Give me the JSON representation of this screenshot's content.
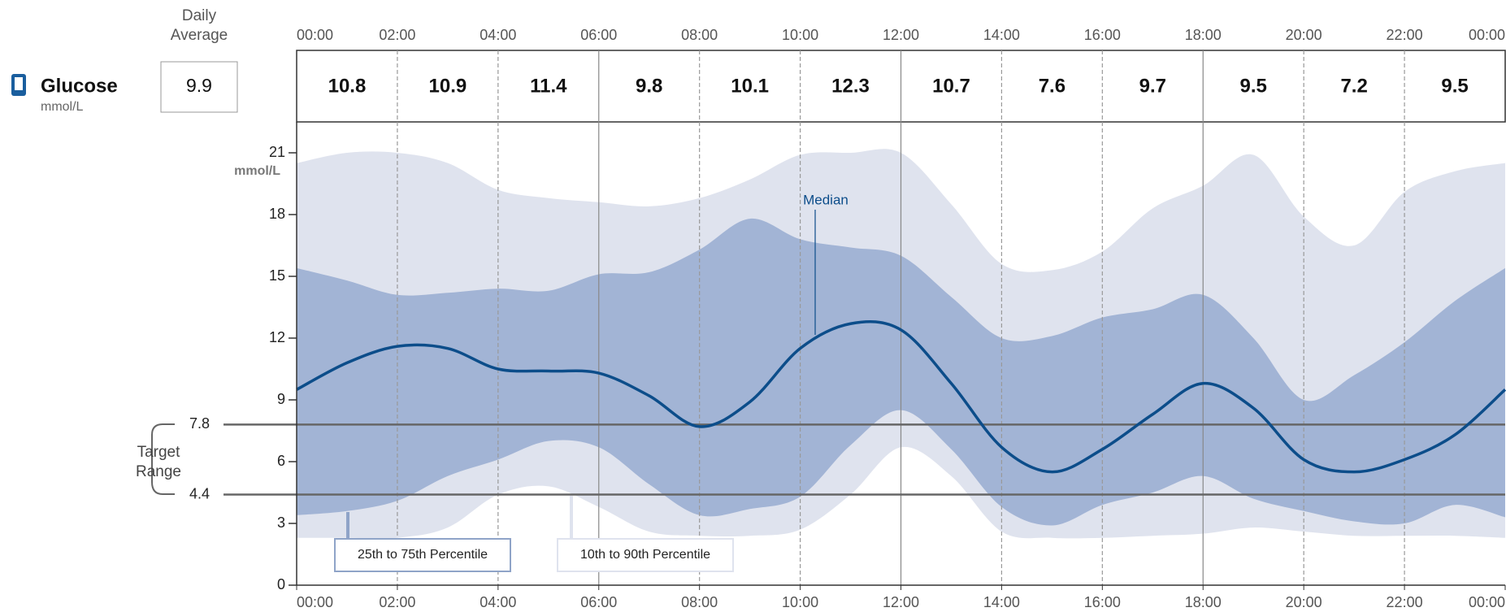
{
  "header": {
    "label": "Glucose",
    "unit": "mmol/L",
    "daily_average_label": "Daily Average",
    "daily_average": 9.9
  },
  "chart_data": {
    "type": "percentile-area",
    "x": [
      0,
      1,
      2,
      3,
      4,
      5,
      6,
      7,
      8,
      9,
      10,
      11,
      12,
      13,
      14,
      15,
      16,
      17,
      18,
      19,
      20,
      21,
      22,
      23,
      24
    ],
    "xlim": [
      0,
      24
    ],
    "xticks": [
      {
        "value": 0,
        "label": "00:00"
      },
      {
        "value": 2,
        "label": "02:00"
      },
      {
        "value": 4,
        "label": "04:00"
      },
      {
        "value": 6,
        "label": "06:00"
      },
      {
        "value": 8,
        "label": "08:00"
      },
      {
        "value": 10,
        "label": "10:00"
      },
      {
        "value": 12,
        "label": "12:00"
      },
      {
        "value": 14,
        "label": "14:00"
      },
      {
        "value": 16,
        "label": "16:00"
      },
      {
        "value": 18,
        "label": "18:00"
      },
      {
        "value": 20,
        "label": "20:00"
      },
      {
        "value": 22,
        "label": "22:00"
      },
      {
        "value": 24,
        "label": "00:00"
      }
    ],
    "ylim": [
      0,
      21
    ],
    "yticks": [
      0,
      3,
      6,
      9,
      12,
      15,
      18,
      21
    ],
    "ylabel": "mmol/L",
    "interval_averages": [
      10.8,
      10.9,
      11.4,
      9.8,
      10.1,
      12.3,
      10.7,
      7.6,
      9.7,
      9.5,
      7.2,
      9.5
    ],
    "target_range": {
      "label": "Target Range",
      "low": 4.4,
      "high": 7.8
    },
    "bands": [
      {
        "name": "10th to 90th Percentile",
        "color": "#dfe3ee",
        "lower": [
          2.3,
          2.3,
          2.3,
          2.8,
          4.4,
          4.8,
          3.8,
          2.6,
          2.4,
          2.4,
          2.7,
          4.4,
          6.7,
          5.3,
          2.6,
          2.3,
          2.3,
          2.4,
          2.5,
          2.8,
          2.6,
          2.4,
          2.4,
          2.4,
          2.3
        ],
        "upper": [
          20.5,
          21,
          21,
          20.5,
          19.2,
          18.8,
          18.6,
          18.4,
          18.8,
          19.7,
          20.9,
          21,
          21,
          18.5,
          15.6,
          15.3,
          16.2,
          18.3,
          19.4,
          20.9,
          17.9,
          16.5,
          19.1,
          20.1,
          20.5
        ]
      },
      {
        "name": "25th to 75th Percentile",
        "color": "#a2b4d5",
        "lower": [
          3.4,
          3.6,
          4.1,
          5.3,
          6.1,
          7.0,
          6.7,
          4.9,
          3.4,
          3.7,
          4.3,
          6.8,
          8.5,
          6.6,
          3.8,
          2.9,
          3.9,
          4.5,
          5.3,
          4.2,
          3.6,
          3.1,
          3.0,
          3.9,
          3.3
        ],
        "upper": [
          15.4,
          14.8,
          14.1,
          14.2,
          14.4,
          14.3,
          15.1,
          15.2,
          16.3,
          17.8,
          16.8,
          16.4,
          16.0,
          14.0,
          12.0,
          12.1,
          13.0,
          13.4,
          14.1,
          12.0,
          9.0,
          10.2,
          11.8,
          13.8,
          15.4
        ]
      }
    ],
    "median": {
      "name": "Median",
      "color": "#0c4d8a",
      "values": [
        9.5,
        10.8,
        11.6,
        11.5,
        10.5,
        10.4,
        10.3,
        9.2,
        7.7,
        8.9,
        11.5,
        12.7,
        12.4,
        9.8,
        6.7,
        5.5,
        6.6,
        8.3,
        9.8,
        8.6,
        6.1,
        5.5,
        6.1,
        7.3,
        9.5
      ]
    }
  }
}
